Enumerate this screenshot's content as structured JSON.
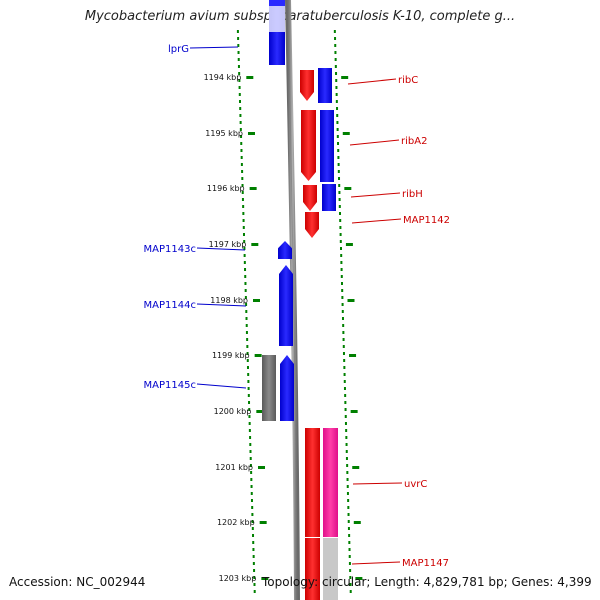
{
  "title": "Mycobacterium avium subsp. paratuberculosis K-10, complete g...",
  "footer": {
    "accession": "Accession: NC_002944",
    "topology": "Topology: circular; Length: 4,829,781 bp; Genes: 4,399"
  },
  "colors": {
    "forward": "#ff0000",
    "reverse": "#0000ff",
    "pseudo": "#808080",
    "rna": "#ff1493",
    "backbone": "#8c8c8c",
    "tick": "#008000"
  },
  "ticks": [
    {
      "label": "1194 kbp"
    },
    {
      "label": "1195 kbp"
    },
    {
      "label": "1196 kbp"
    },
    {
      "label": "1197 kbp"
    },
    {
      "label": "1198 kbp"
    },
    {
      "label": "1199 kbp"
    },
    {
      "label": "1200 kbp"
    },
    {
      "label": "1201 kbp"
    },
    {
      "label": "1202 kbp"
    },
    {
      "label": "1203 kbp"
    }
  ],
  "genes": [
    {
      "name": "lprG",
      "strand": "reverse"
    },
    {
      "name": "ribC",
      "strand": "forward"
    },
    {
      "name": "ribA2",
      "strand": "forward"
    },
    {
      "name": "ribH",
      "strand": "forward"
    },
    {
      "name": "MAP1142",
      "strand": "forward"
    },
    {
      "name": "MAP1143c",
      "strand": "reverse"
    },
    {
      "name": "MAP1144c",
      "strand": "reverse"
    },
    {
      "name": "MAP1145c",
      "strand": "reverse"
    },
    {
      "name": "uvrC",
      "strand": "forward"
    },
    {
      "name": "MAP1147",
      "strand": "forward"
    }
  ]
}
